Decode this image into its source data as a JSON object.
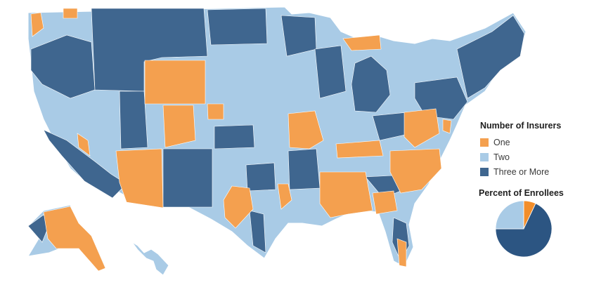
{
  "legend": {
    "title": "Number of Insurers",
    "items": [
      {
        "label": "One",
        "color": "#f4a04f"
      },
      {
        "label": "Two",
        "color": "#a9cbe6"
      },
      {
        "label": "Three or More",
        "color": "#3f668f"
      }
    ]
  },
  "pie": {
    "title": "Percent of Enrollees",
    "slices": [
      {
        "category": "One",
        "percent": 7,
        "color": "#f28e2b"
      },
      {
        "category": "Three or More",
        "percent": 68,
        "color": "#2c5582"
      },
      {
        "category": "Two",
        "percent": 25,
        "color": "#a9cbe6"
      }
    ]
  },
  "map": {
    "colors": {
      "one": "#f4a04f",
      "two": "#a9cbe6",
      "three": "#3f668f",
      "border": "#ffffff"
    }
  }
}
